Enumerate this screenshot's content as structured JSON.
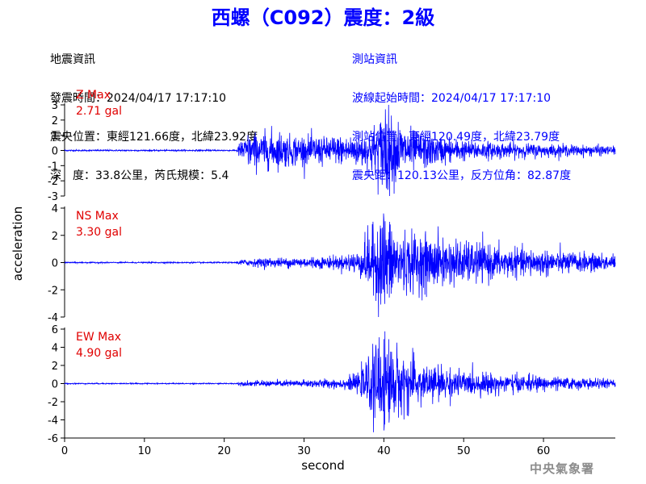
{
  "header": {
    "title": "西螺（C092）震度：2級",
    "quake_lines": [
      "地震資訊",
      "發震時間：2024/04/17 17:17:10",
      "震央位置：東經121.66度，北緯23.92度",
      "深　度：33.8公里，芮氏規模：5.4"
    ],
    "station_lines": [
      "測站資訊",
      "波線起始時間：2024/04/17 17:17:10",
      "測站位置：東經120.49度，北緯23.79度",
      "震央距：120.13公里，反方位角：82.87度"
    ]
  },
  "agency": "中央氣象署",
  "colors": {
    "title": "#0000ff",
    "trace": "#0000ff",
    "channel_label": "#e00000",
    "station_info": "#0000ff"
  },
  "chart_data": {
    "type": "line",
    "xlabel": "second",
    "ylabel": "acceleration",
    "x_ticks": [
      0,
      10,
      20,
      30,
      40,
      50,
      60
    ],
    "xlim": [
      0,
      69
    ],
    "grid": false,
    "panels": [
      {
        "name": "Z",
        "label": "Z Max",
        "max_text": "2.71 gal",
        "peak_abs": 2.71,
        "ylim": [
          -3,
          3
        ],
        "y_ticks": [
          -3,
          -2,
          -1,
          0,
          1,
          2,
          3
        ],
        "envelope": [
          [
            0,
            0.04
          ],
          [
            21.5,
            0.04
          ],
          [
            22,
            0.5
          ],
          [
            23,
            0.95
          ],
          [
            24,
            1.0
          ],
          [
            25,
            1.05
          ],
          [
            26,
            1.1
          ],
          [
            28,
            0.9
          ],
          [
            30,
            0.8
          ],
          [
            32,
            0.8
          ],
          [
            35,
            0.85
          ],
          [
            38,
            1.0
          ],
          [
            39.5,
            1.8
          ],
          [
            40.2,
            2.71
          ],
          [
            41,
            1.9
          ],
          [
            43,
            1.2
          ],
          [
            46,
            0.9
          ],
          [
            50,
            0.55
          ],
          [
            55,
            0.45
          ],
          [
            60,
            0.35
          ],
          [
            65,
            0.3
          ],
          [
            69,
            0.25
          ]
        ]
      },
      {
        "name": "NS",
        "label": "NS Max",
        "max_text": "3.30 gal",
        "peak_abs": 3.3,
        "ylim": [
          -4,
          4
        ],
        "y_ticks": [
          -4,
          -2,
          0,
          2,
          4
        ],
        "envelope": [
          [
            0,
            0.04
          ],
          [
            21.5,
            0.04
          ],
          [
            22,
            0.2
          ],
          [
            26,
            0.3
          ],
          [
            30,
            0.35
          ],
          [
            35,
            0.45
          ],
          [
            37,
            0.8
          ],
          [
            38,
            1.9
          ],
          [
            39,
            2.4
          ],
          [
            40,
            3.3
          ],
          [
            41,
            2.6
          ],
          [
            42,
            2.0
          ],
          [
            44,
            1.9
          ],
          [
            48,
            1.5
          ],
          [
            52,
            1.2
          ],
          [
            56,
            0.9
          ],
          [
            60,
            0.8
          ],
          [
            65,
            0.6
          ],
          [
            69,
            0.5
          ]
        ]
      },
      {
        "name": "EW",
        "label": "EW Max",
        "max_text": "4.90 gal",
        "peak_abs": 4.9,
        "ylim": [
          -6,
          6
        ],
        "y_ticks": [
          -6,
          -4,
          -2,
          0,
          2,
          4,
          6
        ],
        "envelope": [
          [
            0,
            0.05
          ],
          [
            21.5,
            0.05
          ],
          [
            22,
            0.2
          ],
          [
            26,
            0.3
          ],
          [
            30,
            0.35
          ],
          [
            35,
            0.5
          ],
          [
            37,
            1.0
          ],
          [
            38,
            2.5
          ],
          [
            39,
            3.5
          ],
          [
            40,
            4.9
          ],
          [
            41,
            3.8
          ],
          [
            42,
            3.0
          ],
          [
            44,
            2.2
          ],
          [
            47,
            1.6
          ],
          [
            50,
            1.1
          ],
          [
            55,
            0.9
          ],
          [
            60,
            0.7
          ],
          [
            65,
            0.5
          ],
          [
            69,
            0.4
          ]
        ]
      }
    ]
  }
}
